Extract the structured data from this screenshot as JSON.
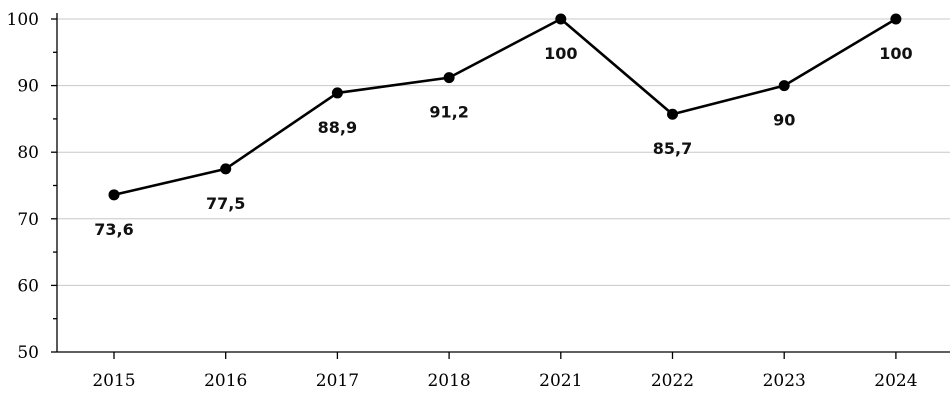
{
  "chart_data": {
    "type": "line",
    "title": "",
    "xlabel": "",
    "ylabel": "",
    "categories": [
      "2015",
      "2016",
      "2017",
      "2018",
      "2021",
      "2022",
      "2023",
      "2024"
    ],
    "series": [
      {
        "values": [
          73.6,
          77.5,
          88.9,
          91.2,
          100,
          85.7,
          90,
          100
        ],
        "data_labels": [
          "73,6",
          "77,5",
          "88,9",
          "91,2",
          "100",
          "85,7",
          "90",
          "100"
        ]
      }
    ],
    "ylim": [
      50,
      100
    ],
    "yticks": [
      50,
      60,
      70,
      80,
      90,
      100
    ],
    "grid": true,
    "legend": "none",
    "colors": {
      "line": "#000000",
      "grid": "#c8c8c8"
    }
  }
}
